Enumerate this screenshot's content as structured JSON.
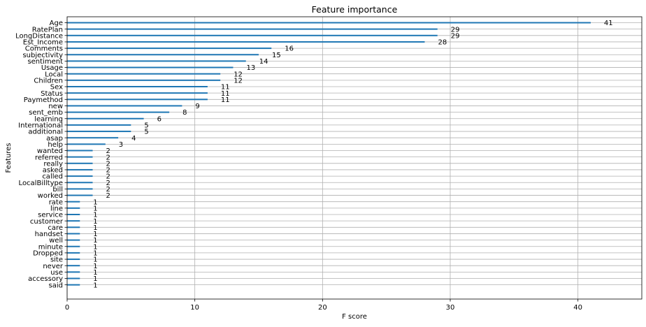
{
  "chart_data": {
    "type": "bar",
    "orientation": "horizontal",
    "title": "Feature importance",
    "xlabel": "F score",
    "ylabel": "Features",
    "xlim": [
      0,
      45
    ],
    "xticks": [
      0,
      10,
      20,
      30,
      40
    ],
    "grid": true,
    "bar_color": "#1f77b4",
    "categories": [
      "Age",
      "RatePlan",
      "LongDistance",
      "Est_Income",
      "Comments",
      "subjectivity",
      "sentiment",
      "Usage",
      "Local",
      "Children",
      "Sex",
      "Status",
      "Paymethod",
      "new",
      "sent_emb",
      "learning",
      "International",
      "additional",
      "asap",
      "help",
      "wanted",
      "referred",
      "really",
      "asked",
      "called",
      "LocalBilltype",
      "bill",
      "worked",
      "rate",
      "line",
      "service",
      "customer",
      "care",
      "handset",
      "well",
      "minute",
      "Dropped",
      "site",
      "never",
      "use",
      "accessory",
      "said"
    ],
    "values": [
      41,
      29,
      29,
      28,
      16,
      15,
      14,
      13,
      12,
      12,
      11,
      11,
      11,
      9,
      8,
      6,
      5,
      5,
      4,
      3,
      2,
      2,
      2,
      2,
      2,
      2,
      2,
      2,
      1,
      1,
      1,
      1,
      1,
      1,
      1,
      1,
      1,
      1,
      1,
      1,
      1,
      1
    ],
    "data_labels": [
      "41",
      "29",
      "29",
      "28",
      "16",
      "15",
      "14",
      "13",
      "12",
      "12",
      "11",
      "11",
      "11",
      "9",
      "8",
      "6",
      "5",
      "5",
      "4",
      "3",
      "2",
      "2",
      "2",
      "2",
      "2",
      "2",
      "2",
      "2",
      "1",
      "1",
      "1",
      "1",
      "1",
      "1",
      "1",
      "1",
      "1",
      "1",
      "1",
      "1",
      "1",
      "1"
    ]
  }
}
